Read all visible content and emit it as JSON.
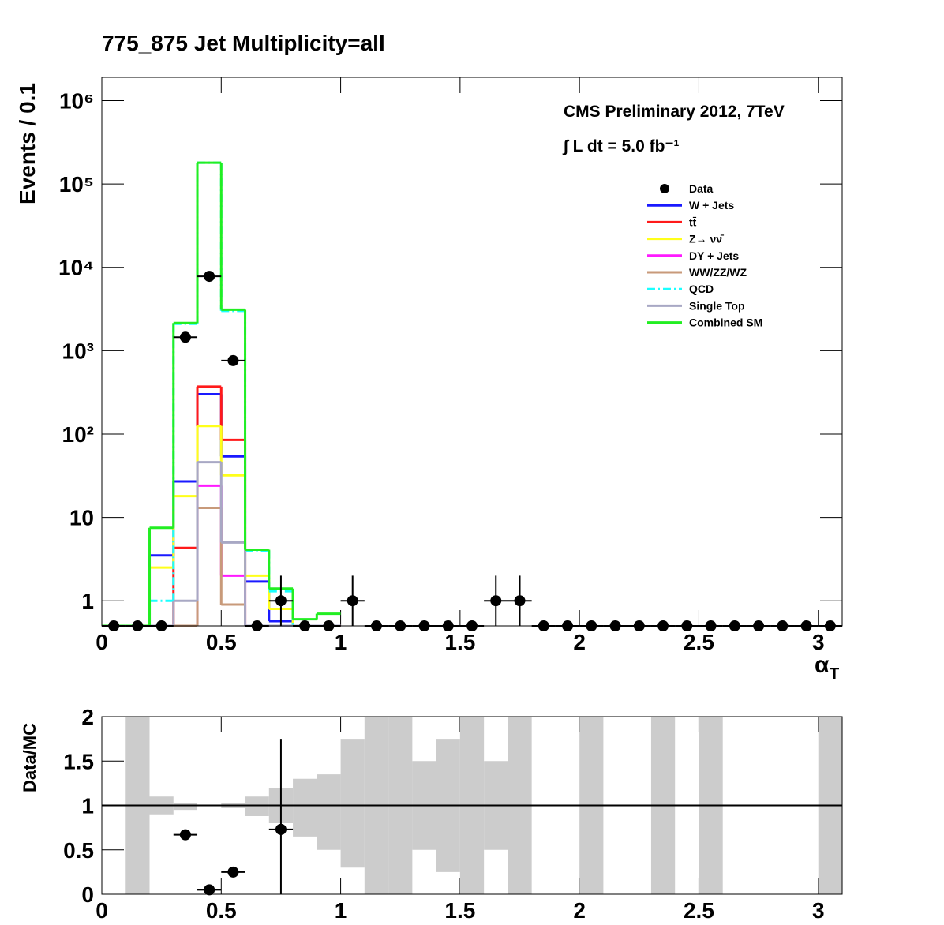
{
  "chart_data": [
    {
      "type": "histogram",
      "title": "775_875    Jet Multiplicity=all",
      "y_label": "Events / 0.1",
      "x_label": "α",
      "x_label_sub": "T",
      "annotations": [
        "CMS Preliminary 2012, 7TeV",
        "∫ L dt = 5.0 fb⁻¹"
      ],
      "log_y": true,
      "xlim": [
        0,
        3.1
      ],
      "ylim": [
        0.5,
        1900000
      ],
      "xticks": [
        0,
        0.5,
        1,
        1.5,
        2,
        2.5,
        3
      ],
      "yticks": [
        1,
        10,
        {
          "value": 100,
          "label": "10²"
        },
        {
          "value": 1000,
          "label": "10³"
        },
        {
          "value": 10000,
          "label": "10⁴"
        },
        {
          "value": 100000,
          "label": "10⁵"
        },
        {
          "value": 1000000,
          "label": "10⁶"
        }
      ],
      "legend": "top-right",
      "bins": [
        0,
        0.1,
        0.2,
        0.3,
        0.4,
        0.5,
        0.6,
        0.7,
        0.8,
        0.9,
        1.0
      ],
      "series": [
        {
          "name": "W + Jets",
          "color": "#1a1aff",
          "values": [
            0,
            0,
            3.5,
            27,
            300,
            54,
            1.7,
            0.57,
            0,
            0
          ]
        },
        {
          "name": "tt̄",
          "color": "#ff1a1a",
          "values": [
            0,
            0,
            0,
            4.3,
            370,
            85,
            0,
            0,
            0,
            0
          ]
        },
        {
          "name": "Z→ νν̄",
          "color": "#ffff1a",
          "values": [
            0,
            0,
            2.5,
            18,
            125,
            32,
            2,
            0.8,
            0,
            0
          ]
        },
        {
          "name": "DY + Jets",
          "color": "#ff1aff",
          "values": [
            0,
            0,
            0,
            0,
            24,
            2,
            0,
            0,
            0,
            0
          ]
        },
        {
          "name": "WW/ZZ/WZ",
          "color": "#c89a7a",
          "values": [
            0,
            0,
            0,
            0,
            13,
            0.9,
            0,
            0,
            0,
            0
          ]
        },
        {
          "name": "QCD",
          "color": "#1affff",
          "dashed": true,
          "values": [
            0,
            0,
            1.0,
            2100,
            180000,
            3000,
            4,
            1.3,
            0,
            0
          ]
        },
        {
          "name": "Single Top",
          "color": "#a8a8c4",
          "values": [
            0,
            0,
            0,
            1.0,
            46,
            5,
            0,
            0,
            0,
            0
          ]
        },
        {
          "name": "Combined SM",
          "color": "#22ee22",
          "values": [
            0,
            0,
            7.5,
            2150,
            180000,
            3100,
            4.1,
            1.4,
            0.6,
            0.7
          ]
        }
      ],
      "data": {
        "name": "Data",
        "color": "#000000",
        "x": [
          0.05,
          0.15,
          0.25,
          0.35,
          0.45,
          0.55,
          0.65,
          0.75,
          0.85,
          0.95,
          1.05,
          1.15,
          1.25,
          1.35,
          1.45,
          1.55,
          1.65,
          1.75,
          1.85,
          1.95,
          2.05,
          2.15,
          2.25,
          2.35,
          2.45,
          2.55,
          2.65,
          2.75,
          2.85,
          2.95,
          3.05
        ],
        "values": [
          0,
          0,
          0,
          1450,
          7800,
          760,
          0,
          1,
          0,
          0,
          1,
          0,
          0,
          0,
          0,
          0,
          1,
          1,
          0,
          0,
          0,
          0,
          0,
          0,
          0,
          0,
          0,
          0,
          0,
          0,
          0
        ],
        "errors": [
          null,
          null,
          null,
          38,
          88,
          28,
          null,
          1,
          null,
          null,
          1,
          null,
          null,
          null,
          null,
          null,
          1,
          1,
          null,
          null,
          null,
          null,
          null,
          null,
          null,
          null,
          null,
          null,
          null,
          null,
          null
        ]
      }
    },
    {
      "type": "ratio",
      "y_label": "Data/MC",
      "xlim": [
        0,
        3.1
      ],
      "ylim": [
        0,
        2
      ],
      "xticks": [
        0,
        0.5,
        1,
        1.5,
        2,
        2.5,
        3
      ],
      "yticks": [
        0,
        0.5,
        1,
        1.5,
        2
      ],
      "reference_line": 1,
      "band_color": "#cccccc",
      "band_lo": [
        null,
        0,
        0.9,
        0.95,
        null,
        0.97,
        0.88,
        0.8,
        0.65,
        0.5,
        0.3,
        0,
        0,
        0.5,
        0.25,
        0,
        0.5,
        0,
        null,
        null,
        0,
        null,
        null,
        0,
        null,
        0,
        null,
        null,
        null,
        null,
        0
      ],
      "band_hi": [
        null,
        2,
        1.1,
        1.03,
        null,
        1.03,
        1.1,
        1.2,
        1.3,
        1.35,
        1.75,
        2,
        2,
        1.5,
        1.75,
        2,
        1.5,
        2,
        null,
        null,
        2,
        null,
        null,
        2,
        null,
        2,
        null,
        null,
        null,
        null,
        2
      ],
      "x": [
        0.35,
        0.45,
        0.55,
        0.75
      ],
      "values": [
        0.67,
        0.05,
        0.25,
        0.73
      ],
      "errors": [
        0.02,
        0.01,
        0.01,
        1.02
      ]
    }
  ]
}
